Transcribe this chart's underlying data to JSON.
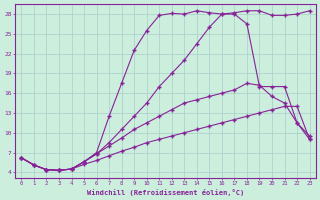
{
  "background_color": "#cceedd",
  "grid_color": "#aacccc",
  "line_color": "#882299",
  "xlabel": "Windchill (Refroidissement éolien,°C)",
  "xlim_min": -0.5,
  "xlim_max": 23.5,
  "ylim_min": 3.2,
  "ylim_max": 29.5,
  "xticks": [
    0,
    1,
    2,
    3,
    4,
    5,
    6,
    7,
    8,
    9,
    10,
    11,
    12,
    13,
    14,
    15,
    16,
    17,
    18,
    19,
    20,
    21,
    22,
    23
  ],
  "yticks": [
    4,
    7,
    10,
    13,
    16,
    19,
    22,
    25,
    28
  ],
  "curve_bell_x": [
    0,
    1,
    2,
    3,
    4,
    5,
    6,
    7,
    8,
    9,
    10,
    11,
    12,
    13,
    14,
    15,
    16,
    17,
    18,
    19,
    20,
    21,
    22,
    23
  ],
  "curve_bell_y": [
    6.2,
    5.1,
    4.4,
    4.3,
    4.5,
    5.6,
    7.0,
    12.5,
    17.5,
    22.5,
    25.5,
    27.8,
    28.1,
    28.0,
    28.5,
    28.2,
    28.0,
    28.0,
    26.5,
    17.0,
    17.0,
    17.0,
    11.5,
    9.0
  ],
  "curve_rise_x": [
    0,
    1,
    2,
    3,
    4,
    5,
    6,
    7,
    8,
    9,
    10,
    11,
    12,
    13,
    14,
    15,
    16,
    17,
    18,
    19,
    20,
    21,
    22,
    23
  ],
  "curve_rise_y": [
    6.2,
    5.1,
    4.4,
    4.3,
    4.5,
    5.6,
    6.8,
    8.5,
    10.5,
    12.5,
    14.5,
    17.0,
    19.0,
    21.0,
    23.5,
    26.0,
    28.0,
    28.2,
    28.5,
    28.5,
    27.8,
    27.8,
    28.0,
    28.5
  ],
  "curve_mid_x": [
    0,
    1,
    2,
    3,
    4,
    5,
    6,
    7,
    8,
    9,
    10,
    11,
    12,
    13,
    14,
    15,
    16,
    17,
    18,
    19,
    20,
    21,
    22,
    23
  ],
  "curve_mid_y": [
    6.2,
    5.1,
    4.4,
    4.3,
    4.5,
    5.6,
    6.8,
    8.0,
    9.2,
    10.5,
    11.5,
    12.5,
    13.5,
    14.5,
    15.0,
    15.5,
    16.0,
    16.5,
    17.5,
    17.2,
    15.5,
    14.5,
    11.5,
    9.5
  ],
  "curve_flat_x": [
    0,
    1,
    2,
    3,
    4,
    5,
    6,
    7,
    8,
    9,
    10,
    11,
    12,
    13,
    14,
    15,
    16,
    17,
    18,
    19,
    20,
    21,
    22,
    23
  ],
  "curve_flat_y": [
    6.2,
    5.1,
    4.4,
    4.3,
    4.5,
    5.2,
    5.8,
    6.5,
    7.2,
    7.8,
    8.5,
    9.0,
    9.5,
    10.0,
    10.5,
    11.0,
    11.5,
    12.0,
    12.5,
    13.0,
    13.5,
    14.0,
    14.0,
    9.0
  ]
}
